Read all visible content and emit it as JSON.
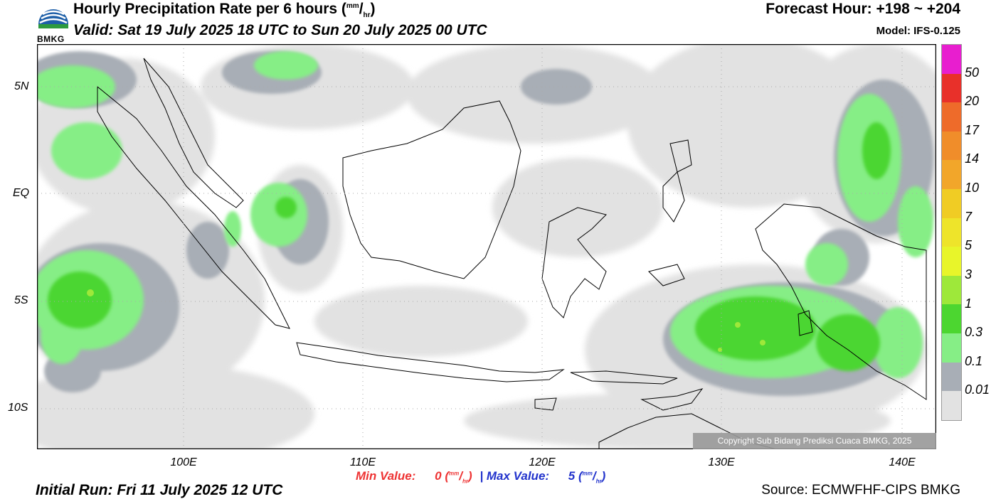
{
  "header": {
    "title_main": "Hourly Precipitation Rate per 6 hours (",
    "title_unit_sup": "mm",
    "title_unit_sub": "hr",
    "title_close": ")",
    "valid": "Valid: Sat 19 July 2025 18 UTC to Sun 20 July 2025 00 UTC",
    "forecast_hour": "Forecast Hour: +198 ~ +204",
    "model": "Model: IFS-0.125",
    "logo_text": "BMKG"
  },
  "map": {
    "lat_labels": [
      "5N",
      "EQ",
      "5S",
      "10S"
    ],
    "lon_labels": [
      "100E",
      "110E",
      "120E",
      "130E",
      "140E"
    ],
    "copyright": "Copyright Sub Bidang Prediksi Cuaca BMKG, 2025"
  },
  "stats": {
    "min_label": "Min Value:",
    "min_value": "0",
    "max_label": "Max Value:",
    "max_value": "5",
    "unit_sup": "mm",
    "unit_sub": "hr",
    "separator": "|"
  },
  "footer": {
    "initial_run": "Initial Run: Fri 11 July 2025 12 UTC",
    "source": "Source: ECMWFHF-CIPS BMKG"
  },
  "colorbar": {
    "labels": [
      "50",
      "20",
      "17",
      "14",
      "10",
      "7",
      "5",
      "3",
      "1",
      "0.3",
      "0.1",
      "0.01"
    ],
    "colors": [
      "#e81ecf",
      "#e8302a",
      "#ee6b2a",
      "#f08d2a",
      "#f2a62a",
      "#f0cc24",
      "#eee42a",
      "#e8f52a",
      "#9ee83a",
      "#4cd630",
      "#86ee86",
      "#a8aeb6",
      "#e2e2e2"
    ]
  }
}
